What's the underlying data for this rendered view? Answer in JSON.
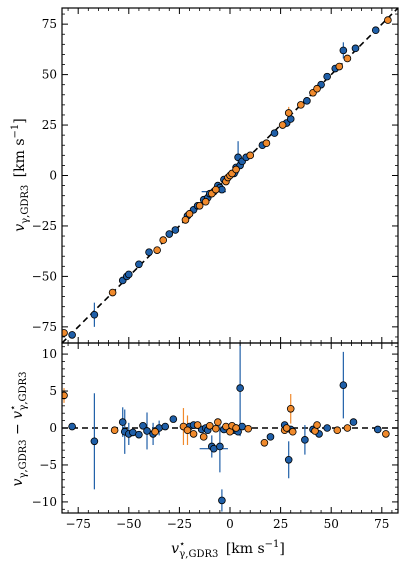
{
  "chart_data": [
    {
      "type": "scatter",
      "panel": "top",
      "ylabel": {
        "main": "v",
        "sub": "γ,GDR3",
        "unit": "[km s",
        "unit_exp": "−1",
        "unit_close": "]"
      },
      "xlim": [
        -83,
        83
      ],
      "ylim": [
        -83,
        83
      ],
      "yticks": [
        -75,
        -50,
        -25,
        0,
        25,
        50,
        75
      ],
      "ytick_labels": [
        "−75",
        "−50",
        "−25",
        "0",
        "25",
        "50",
        "75"
      ],
      "reference_line": "y = x (dashed, black)",
      "series": [
        {
          "name": "",
          "color": "#1f5fa8",
          "points": [
            {
              "x": -78,
              "y": -79
            },
            {
              "x": -67,
              "y": -69,
              "yerr": 6
            },
            {
              "x": -53,
              "y": -52
            },
            {
              "x": -51,
              "y": -50
            },
            {
              "x": -50,
              "y": -49
            },
            {
              "x": -45,
              "y": -44
            },
            {
              "x": -40,
              "y": -38
            },
            {
              "x": -30,
              "y": -29
            },
            {
              "x": -27,
              "y": -27
            },
            {
              "x": -21,
              "y": -20
            },
            {
              "x": -18,
              "y": -17
            },
            {
              "x": -16,
              "y": -15
            },
            {
              "x": -13,
              "y": -12
            },
            {
              "x": -11,
              "y": -11
            },
            {
              "x": -10,
              "y": -9
            },
            {
              "x": -8,
              "y": -8,
              "xerr": 6
            },
            {
              "x": -6,
              "y": -5
            },
            {
              "x": -5,
              "y": -6
            },
            {
              "x": -4,
              "y": -7
            },
            {
              "x": -3,
              "y": -2
            },
            {
              "x": 2,
              "y": 1
            },
            {
              "x": 3,
              "y": 4
            },
            {
              "x": 4,
              "y": 9,
              "yerr": 8
            },
            {
              "x": 5,
              "y": 5
            },
            {
              "x": 6,
              "y": 7
            },
            {
              "x": 8,
              "y": 9
            },
            {
              "x": 16,
              "y": 15
            },
            {
              "x": 22,
              "y": 21
            },
            {
              "x": 28,
              "y": 26
            },
            {
              "x": 30,
              "y": 28
            },
            {
              "x": 38,
              "y": 37
            },
            {
              "x": 45,
              "y": 45
            },
            {
              "x": 48,
              "y": 49
            },
            {
              "x": 52,
              "y": 53
            },
            {
              "x": 56,
              "y": 62,
              "yerr": 4
            },
            {
              "x": 62,
              "y": 63
            },
            {
              "x": 72,
              "y": 72
            }
          ]
        },
        {
          "name": "",
          "color": "#f08a2c",
          "points": [
            {
              "x": -82,
              "y": -78
            },
            {
              "x": -58,
              "y": -58
            },
            {
              "x": -36,
              "y": -37
            },
            {
              "x": -33,
              "y": -32
            },
            {
              "x": -22,
              "y": -22
            },
            {
              "x": -20,
              "y": -19
            },
            {
              "x": -15,
              "y": -15
            },
            {
              "x": -12,
              "y": -13
            },
            {
              "x": -9,
              "y": -9
            },
            {
              "x": -7,
              "y": -7
            },
            {
              "x": -2,
              "y": -3
            },
            {
              "x": -1,
              "y": -1
            },
            {
              "x": 0,
              "y": 0
            },
            {
              "x": 1,
              "y": 1
            },
            {
              "x": 3,
              "y": 3
            },
            {
              "x": 10,
              "y": 10
            },
            {
              "x": 18,
              "y": 16
            },
            {
              "x": 26,
              "y": 25
            },
            {
              "x": 29,
              "y": 31,
              "yerr": 3
            },
            {
              "x": 35,
              "y": 35
            },
            {
              "x": 41,
              "y": 41
            },
            {
              "x": 43,
              "y": 43
            },
            {
              "x": 54,
              "y": 54
            },
            {
              "x": 58,
              "y": 58
            },
            {
              "x": 78,
              "y": 77
            }
          ]
        }
      ]
    },
    {
      "type": "scatter",
      "panel": "bottom",
      "xlabel": {
        "main": "v",
        "sup": "⋆",
        "sub": "γ,GDR3",
        "unit": "[km s",
        "unit_exp": "−1",
        "unit_close": "]"
      },
      "ylabel": {
        "main": "v",
        "sub": "γ,GDR3",
        "minus": " − ",
        "main2": "v",
        "sup2": "⋆",
        "sub2": "γ,GDR3"
      },
      "xlim": [
        -83,
        83
      ],
      "ylim": [
        -11.5,
        11.5
      ],
      "xticks": [
        -75,
        -50,
        -25,
        0,
        25,
        50,
        75
      ],
      "xtick_labels": [
        "−75",
        "−50",
        "−25",
        "0",
        "25",
        "50",
        "75"
      ],
      "yticks": [
        -10,
        -5,
        0,
        5,
        10
      ],
      "ytick_labels": [
        "−10",
        "−5",
        "0",
        "5",
        "10"
      ],
      "reference_line": "y = 0 (dashed, black)",
      "series": [
        {
          "name": "",
          "color": "#1f5fa8",
          "points": [
            {
              "x": -78,
              "y": 0.2
            },
            {
              "x": -67,
              "y": -1.8,
              "yerr": 6.5
            },
            {
              "x": -53,
              "y": 0.8,
              "yerr": 2.0
            },
            {
              "x": -52,
              "y": -0.5,
              "yerr": 3.0
            },
            {
              "x": -50,
              "y": -0.8,
              "yerr": 1.5
            },
            {
              "x": -48,
              "y": -0.6
            },
            {
              "x": -45,
              "y": -0.9
            },
            {
              "x": -43,
              "y": 0.3
            },
            {
              "x": -41,
              "y": -0.4,
              "yerr": 2.5
            },
            {
              "x": -38,
              "y": -0.8,
              "yerr": 1.5
            },
            {
              "x": -35,
              "y": 0.0,
              "yerr": 1.0
            },
            {
              "x": -32,
              "y": 0.2
            },
            {
              "x": -28,
              "y": 1.2
            },
            {
              "x": -20,
              "y": 0.2
            },
            {
              "x": -18,
              "y": 0.4
            },
            {
              "x": -14,
              "y": -0.2
            },
            {
              "x": -12,
              "y": 0.0
            },
            {
              "x": -11,
              "y": -0.3
            },
            {
              "x": -9,
              "y": -2.5,
              "yerr": 1.5
            },
            {
              "x": -8,
              "y": -2.8,
              "xerr": 7
            },
            {
              "x": -5,
              "y": -2.5,
              "yerr": 3.5
            },
            {
              "x": -4,
              "y": -9.8,
              "yerr": 1.5
            },
            {
              "x": -3,
              "y": -0.2
            },
            {
              "x": 2,
              "y": -0.3
            },
            {
              "x": 3,
              "y": 0.0
            },
            {
              "x": 4,
              "y": -0.5
            },
            {
              "x": 5,
              "y": 5.4,
              "yerr": 6.5
            },
            {
              "x": 6,
              "y": 0.2
            },
            {
              "x": 20,
              "y": -1.2
            },
            {
              "x": 27,
              "y": 0.4
            },
            {
              "x": 29,
              "y": -4.3,
              "yerr": 2.5
            },
            {
              "x": 30,
              "y": -0.2
            },
            {
              "x": 37,
              "y": -1.6,
              "yerr": 2.0
            },
            {
              "x": 41,
              "y": -0.2
            },
            {
              "x": 44,
              "y": -0.8
            },
            {
              "x": 48,
              "y": 0.0
            },
            {
              "x": 56,
              "y": 5.8,
              "yerr": 4.5
            },
            {
              "x": 61,
              "y": 0.8
            },
            {
              "x": 73,
              "y": -0.2
            }
          ]
        },
        {
          "name": "",
          "color": "#f08a2c",
          "points": [
            {
              "x": -82,
              "y": 4.4,
              "yerr": 1.0
            },
            {
              "x": -57,
              "y": -0.3
            },
            {
              "x": -37,
              "y": -0.5
            },
            {
              "x": -23,
              "y": 0.2,
              "yerr": 2.5
            },
            {
              "x": -21,
              "y": -0.3,
              "yerr": 2.0
            },
            {
              "x": -18,
              "y": -0.8
            },
            {
              "x": -16,
              "y": 0.4
            },
            {
              "x": -13,
              "y": -1.2
            },
            {
              "x": -10,
              "y": 0.3
            },
            {
              "x": -7,
              "y": -0.1
            },
            {
              "x": -6,
              "y": 0.8
            },
            {
              "x": -2,
              "y": 0.2
            },
            {
              "x": 0,
              "y": -0.5
            },
            {
              "x": 1,
              "y": 0.3
            },
            {
              "x": 3,
              "y": 0.0
            },
            {
              "x": 9,
              "y": -0.1
            },
            {
              "x": 17,
              "y": -2.0
            },
            {
              "x": 27,
              "y": -0.3
            },
            {
              "x": 28,
              "y": 0.0
            },
            {
              "x": 30,
              "y": 2.6,
              "yerr": 2.0
            },
            {
              "x": 31,
              "y": -0.5
            },
            {
              "x": 42,
              "y": -0.4
            },
            {
              "x": 43,
              "y": 0.4
            },
            {
              "x": 53,
              "y": -0.3
            },
            {
              "x": 58,
              "y": 0.0
            },
            {
              "x": 77,
              "y": -0.8
            }
          ]
        }
      ]
    }
  ]
}
